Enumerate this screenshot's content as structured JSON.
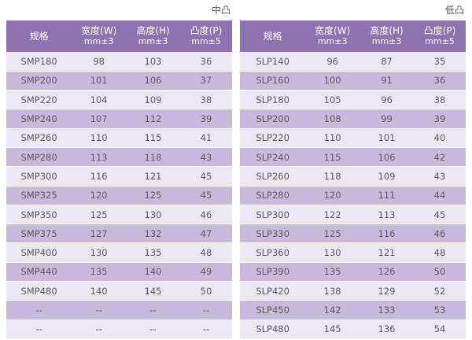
{
  "left": {
    "caption": "中凸",
    "headers": [
      {
        "main": "规格",
        "sub": ""
      },
      {
        "main": "宽度(W)",
        "sub": "mm±3"
      },
      {
        "main": "高度(H)",
        "sub": "mm±3"
      },
      {
        "main": "凸度(P)",
        "sub": "mm±5"
      }
    ],
    "rows": [
      [
        "SMP180",
        "98",
        "103",
        "36"
      ],
      [
        "SMP200",
        "101",
        "106",
        "37"
      ],
      [
        "SMP220",
        "104",
        "109",
        "38"
      ],
      [
        "SMP240",
        "107",
        "112",
        "39"
      ],
      [
        "SMP260",
        "110",
        "115",
        "41"
      ],
      [
        "SMP280",
        "113",
        "118",
        "43"
      ],
      [
        "SMP300",
        "116",
        "121",
        "45"
      ],
      [
        "SMP325",
        "120",
        "125",
        "45"
      ],
      [
        "SMP350",
        "125",
        "130",
        "46"
      ],
      [
        "SMP375",
        "127",
        "132",
        "47"
      ],
      [
        "SMP400",
        "130",
        "135",
        "48"
      ],
      [
        "SMP440",
        "135",
        "140",
        "49"
      ],
      [
        "SMP480",
        "140",
        "145",
        "50"
      ],
      [
        "--",
        "--",
        "--",
        "--"
      ],
      [
        "--",
        "--",
        "--",
        "--"
      ]
    ]
  },
  "right": {
    "caption": "低凸",
    "headers": [
      {
        "main": "规格",
        "sub": ""
      },
      {
        "main": "宽度(W)",
        "sub": "mm±3"
      },
      {
        "main": "高度(H)",
        "sub": "mm±3"
      },
      {
        "main": "凸度(P)",
        "sub": "mm±5"
      }
    ],
    "rows": [
      [
        "SLP140",
        "96",
        "87",
        "35"
      ],
      [
        "SLP160",
        "100",
        "91",
        "36"
      ],
      [
        "SLP180",
        "105",
        "96",
        "38"
      ],
      [
        "SLP200",
        "108",
        "99",
        "39"
      ],
      [
        "SLP220",
        "110",
        "101",
        "40"
      ],
      [
        "SLP240",
        "115",
        "106",
        "42"
      ],
      [
        "SLP260",
        "118",
        "109",
        "43"
      ],
      [
        "SLP280",
        "120",
        "111",
        "44"
      ],
      [
        "SLP300",
        "122",
        "113",
        "45"
      ],
      [
        "SLP330",
        "125",
        "116",
        "46"
      ],
      [
        "SLP360",
        "130",
        "121",
        "48"
      ],
      [
        "SLP390",
        "135",
        "126",
        "50"
      ],
      [
        "SLP420",
        "138",
        "129",
        "52"
      ],
      [
        "SLP450",
        "142",
        "133",
        "53"
      ],
      [
        "SLP480",
        "145",
        "136",
        "54"
      ]
    ]
  }
}
